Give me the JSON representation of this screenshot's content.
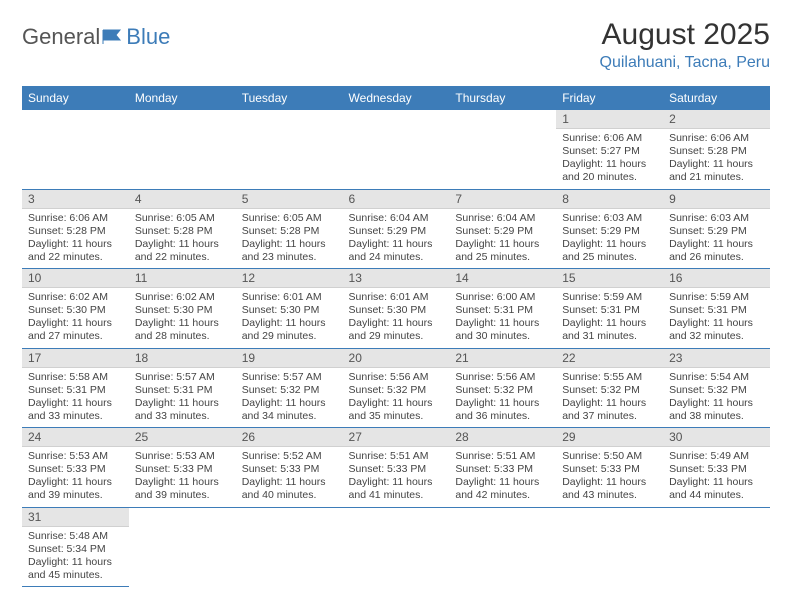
{
  "logo": {
    "text1": "General",
    "text2": "Blue"
  },
  "title": "August 2025",
  "subtitle": "Quilahuani, Tacna, Peru",
  "colors": {
    "header_bg": "#3d7cb8",
    "header_text": "#ffffff",
    "daynum_bg": "#e5e5e5",
    "border": "#3d7cb8"
  },
  "weekdays": [
    "Sunday",
    "Monday",
    "Tuesday",
    "Wednesday",
    "Thursday",
    "Friday",
    "Saturday"
  ],
  "days": {
    "1": {
      "sr": "6:06 AM",
      "ss": "5:27 PM",
      "dl": "11 hours and 20 minutes."
    },
    "2": {
      "sr": "6:06 AM",
      "ss": "5:28 PM",
      "dl": "11 hours and 21 minutes."
    },
    "3": {
      "sr": "6:06 AM",
      "ss": "5:28 PM",
      "dl": "11 hours and 22 minutes."
    },
    "4": {
      "sr": "6:05 AM",
      "ss": "5:28 PM",
      "dl": "11 hours and 22 minutes."
    },
    "5": {
      "sr": "6:05 AM",
      "ss": "5:28 PM",
      "dl": "11 hours and 23 minutes."
    },
    "6": {
      "sr": "6:04 AM",
      "ss": "5:29 PM",
      "dl": "11 hours and 24 minutes."
    },
    "7": {
      "sr": "6:04 AM",
      "ss": "5:29 PM",
      "dl": "11 hours and 25 minutes."
    },
    "8": {
      "sr": "6:03 AM",
      "ss": "5:29 PM",
      "dl": "11 hours and 25 minutes."
    },
    "9": {
      "sr": "6:03 AM",
      "ss": "5:29 PM",
      "dl": "11 hours and 26 minutes."
    },
    "10": {
      "sr": "6:02 AM",
      "ss": "5:30 PM",
      "dl": "11 hours and 27 minutes."
    },
    "11": {
      "sr": "6:02 AM",
      "ss": "5:30 PM",
      "dl": "11 hours and 28 minutes."
    },
    "12": {
      "sr": "6:01 AM",
      "ss": "5:30 PM",
      "dl": "11 hours and 29 minutes."
    },
    "13": {
      "sr": "6:01 AM",
      "ss": "5:30 PM",
      "dl": "11 hours and 29 minutes."
    },
    "14": {
      "sr": "6:00 AM",
      "ss": "5:31 PM",
      "dl": "11 hours and 30 minutes."
    },
    "15": {
      "sr": "5:59 AM",
      "ss": "5:31 PM",
      "dl": "11 hours and 31 minutes."
    },
    "16": {
      "sr": "5:59 AM",
      "ss": "5:31 PM",
      "dl": "11 hours and 32 minutes."
    },
    "17": {
      "sr": "5:58 AM",
      "ss": "5:31 PM",
      "dl": "11 hours and 33 minutes."
    },
    "18": {
      "sr": "5:57 AM",
      "ss": "5:31 PM",
      "dl": "11 hours and 33 minutes."
    },
    "19": {
      "sr": "5:57 AM",
      "ss": "5:32 PM",
      "dl": "11 hours and 34 minutes."
    },
    "20": {
      "sr": "5:56 AM",
      "ss": "5:32 PM",
      "dl": "11 hours and 35 minutes."
    },
    "21": {
      "sr": "5:56 AM",
      "ss": "5:32 PM",
      "dl": "11 hours and 36 minutes."
    },
    "22": {
      "sr": "5:55 AM",
      "ss": "5:32 PM",
      "dl": "11 hours and 37 minutes."
    },
    "23": {
      "sr": "5:54 AM",
      "ss": "5:32 PM",
      "dl": "11 hours and 38 minutes."
    },
    "24": {
      "sr": "5:53 AM",
      "ss": "5:33 PM",
      "dl": "11 hours and 39 minutes."
    },
    "25": {
      "sr": "5:53 AM",
      "ss": "5:33 PM",
      "dl": "11 hours and 39 minutes."
    },
    "26": {
      "sr": "5:52 AM",
      "ss": "5:33 PM",
      "dl": "11 hours and 40 minutes."
    },
    "27": {
      "sr": "5:51 AM",
      "ss": "5:33 PM",
      "dl": "11 hours and 41 minutes."
    },
    "28": {
      "sr": "5:51 AM",
      "ss": "5:33 PM",
      "dl": "11 hours and 42 minutes."
    },
    "29": {
      "sr": "5:50 AM",
      "ss": "5:33 PM",
      "dl": "11 hours and 43 minutes."
    },
    "30": {
      "sr": "5:49 AM",
      "ss": "5:33 PM",
      "dl": "11 hours and 44 minutes."
    },
    "31": {
      "sr": "5:48 AM",
      "ss": "5:34 PM",
      "dl": "11 hours and 45 minutes."
    }
  },
  "labels": {
    "sunrise": "Sunrise: ",
    "sunset": "Sunset: ",
    "daylight": "Daylight: "
  },
  "grid": [
    [
      null,
      null,
      null,
      null,
      null,
      "1",
      "2"
    ],
    [
      "3",
      "4",
      "5",
      "6",
      "7",
      "8",
      "9"
    ],
    [
      "10",
      "11",
      "12",
      "13",
      "14",
      "15",
      "16"
    ],
    [
      "17",
      "18",
      "19",
      "20",
      "21",
      "22",
      "23"
    ],
    [
      "24",
      "25",
      "26",
      "27",
      "28",
      "29",
      "30"
    ],
    [
      "31",
      null,
      null,
      null,
      null,
      null,
      null
    ]
  ]
}
